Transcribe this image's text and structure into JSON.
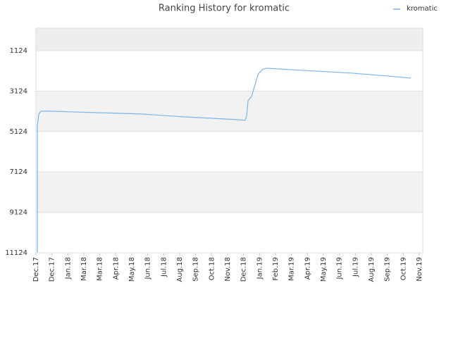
{
  "chart_data": {
    "type": "line",
    "title": "Ranking History for kromatic",
    "x": [
      0.09,
      0.09,
      0.18,
      0.31,
      0.84,
      6.57,
      9.22,
      12.57,
      13.1,
      13.19,
      13.28,
      13.5,
      13.72,
      13.9,
      14.16,
      14.42,
      16.72,
      19.81,
      22.01,
      23.47
    ],
    "series": [
      {
        "name": "kromatic",
        "color": "#7cb5ec",
        "values": [
          11124,
          4849,
          4257,
          4118,
          4118,
          4257,
          4396,
          4536,
          4570,
          4362,
          3596,
          3387,
          2795,
          2308,
          2064,
          1994,
          2099,
          2238,
          2377,
          2482
        ]
      }
    ],
    "xlim": [
      0,
      24
    ],
    "xticks": [
      {
        "value": 0,
        "label": "Dec.17"
      },
      {
        "value": 1,
        "label": "Dec.17"
      },
      {
        "value": 2,
        "label": "Jan.18"
      },
      {
        "value": 3,
        "label": "Mar.18"
      },
      {
        "value": 4,
        "label": "Mar.18"
      },
      {
        "value": 5,
        "label": "Apr.18"
      },
      {
        "value": 6,
        "label": "May.18"
      },
      {
        "value": 7,
        "label": "Jun.18"
      },
      {
        "value": 8,
        "label": "Jul.18"
      },
      {
        "value": 9,
        "label": "Aug.18"
      },
      {
        "value": 10,
        "label": "Sep.18"
      },
      {
        "value": 11,
        "label": "Oct.18"
      },
      {
        "value": 12,
        "label": "Nov.18"
      },
      {
        "value": 13,
        "label": "Dec.18"
      },
      {
        "value": 14,
        "label": "Jan.19"
      },
      {
        "value": 15,
        "label": "Feb.19"
      },
      {
        "value": 16,
        "label": "Mar.19"
      },
      {
        "value": 17,
        "label": "Apr.19"
      },
      {
        "value": 18,
        "label": "May.19"
      },
      {
        "value": 19,
        "label": "Jun.19"
      },
      {
        "value": 20,
        "label": "Jul.19"
      },
      {
        "value": 21,
        "label": "Aug.19"
      },
      {
        "value": 22,
        "label": "Sep.19"
      },
      {
        "value": 23,
        "label": "Oct.19"
      },
      {
        "value": 24,
        "label": "Nov.19"
      }
    ],
    "ylim": [
      11124,
      11
    ],
    "yticks": [
      1124,
      3124,
      5124,
      7124,
      9124,
      11124
    ],
    "grid": true,
    "legend": "top-right"
  }
}
